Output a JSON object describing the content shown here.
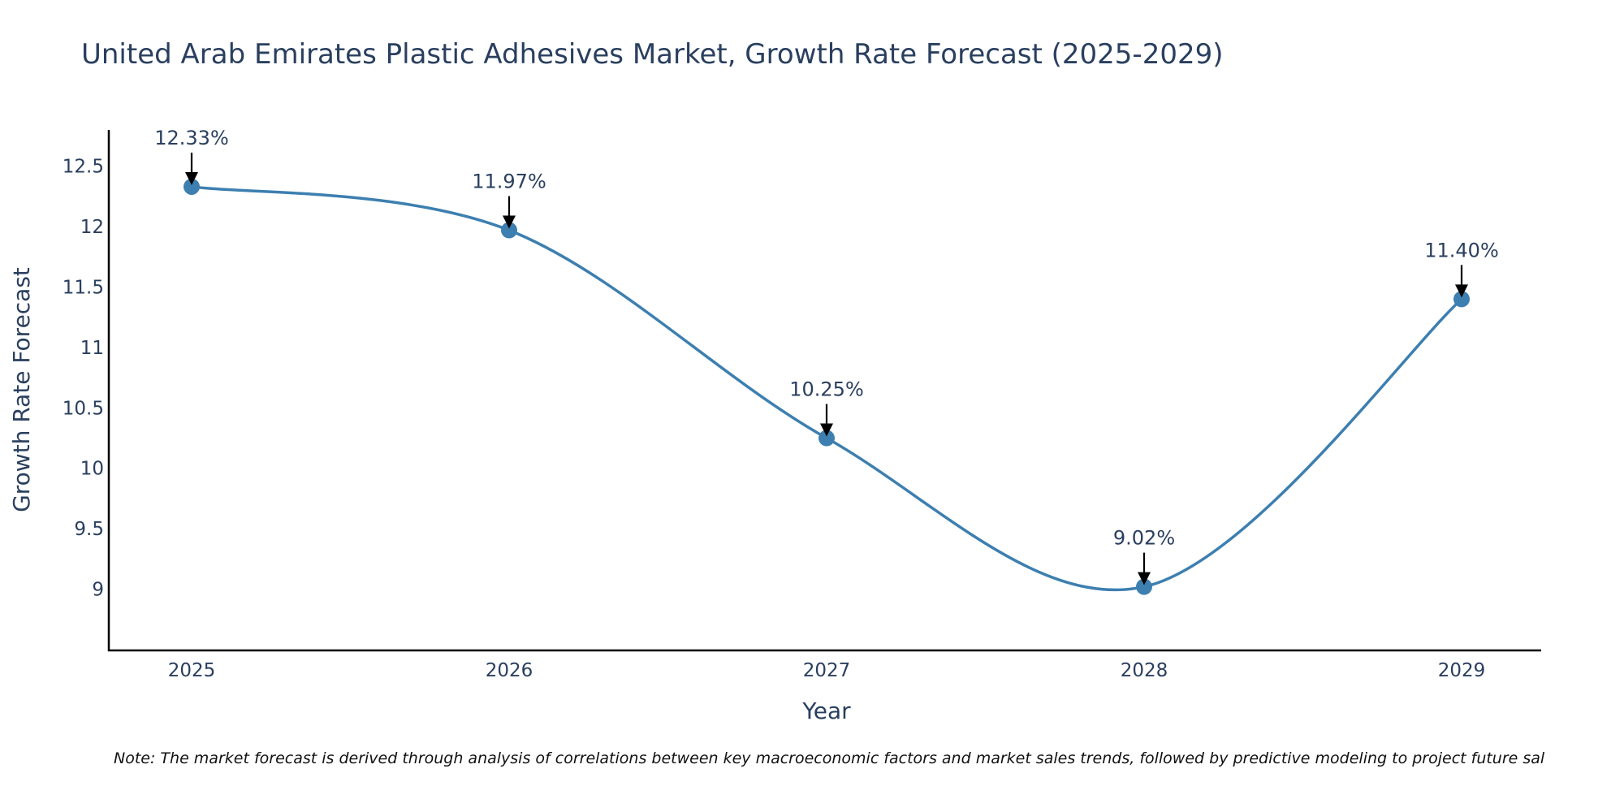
{
  "chart_data": {
    "type": "line",
    "title": "United Arab Emirates Plastic Adhesives Market, Growth Rate Forecast (2025-2029)",
    "xlabel": "Year",
    "ylabel": "Growth Rate Forecast",
    "categories": [
      "2025",
      "2026",
      "2027",
      "2028",
      "2029"
    ],
    "values": [
      12.33,
      11.97,
      10.25,
      9.02,
      11.4
    ],
    "data_labels": [
      "12.33%",
      "11.97%",
      "10.25%",
      "9.02%",
      "11.40%"
    ],
    "ylim": [
      8.5,
      12.8
    ],
    "yticks": [
      9,
      9.5,
      10,
      10.5,
      11,
      11.5,
      12,
      12.5
    ],
    "ytick_labels": [
      "9",
      "9.5",
      "10",
      "10.5",
      "11",
      "11.5",
      "12",
      "12.5"
    ],
    "grid": false,
    "line_color": "#3d7fb0",
    "marker_color": "#3d7fb0"
  },
  "note": "Note: The market forecast is derived through analysis of correlations between key macroeconomic factors and market sales trends, followed by predictive modeling to project future sal"
}
